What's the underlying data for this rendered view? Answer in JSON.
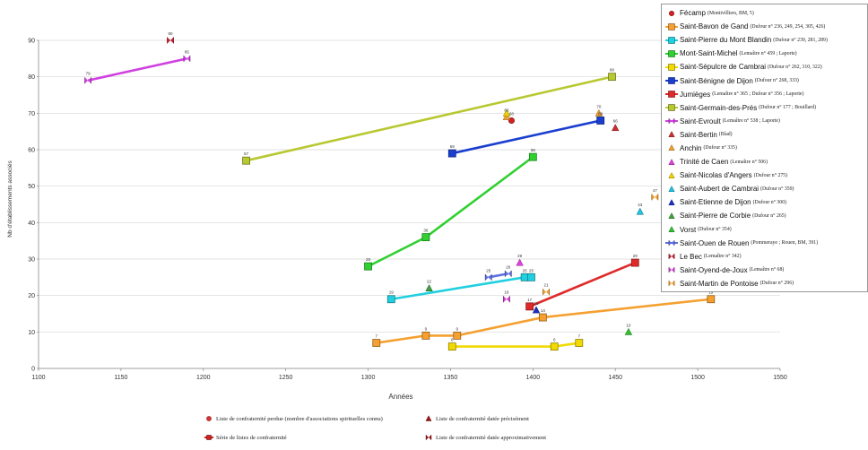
{
  "chart_data": {
    "type": "line",
    "xlabel": "Années",
    "ylabel": "Nb d'établissements associés",
    "xlim": [
      1100,
      1550
    ],
    "ylim": [
      0,
      90
    ],
    "xticks": [
      "1100",
      "1150",
      "1200",
      "1250",
      "1300",
      "1350",
      "1400",
      "1450",
      "1500",
      "1550"
    ],
    "yticks": [
      "0",
      "10",
      "20",
      "30",
      "40",
      "50",
      "60",
      "70",
      "80",
      "90"
    ],
    "grid": "horizontal",
    "legend_position": "right",
    "series": [
      {
        "name": "Fécamp",
        "source": "(Montivilliers, BM, 5)",
        "color": "#d32020",
        "marker": "circle",
        "connect": false,
        "points": [
          {
            "x": 1387,
            "y": 68,
            "label": "68"
          }
        ]
      },
      {
        "name": "Saint-Bavon de Gand",
        "source": "(Dufour n° 236, 249, 254, 305, 426)",
        "color": "#f5a030",
        "marker": "square",
        "connect": true,
        "points": [
          {
            "x": 1305,
            "y": 7,
            "label": "7"
          },
          {
            "x": 1335,
            "y": 9,
            "label": "9"
          },
          {
            "x": 1354,
            "y": 9,
            "label": "9"
          },
          {
            "x": 1406,
            "y": 14,
            "label": "14"
          },
          {
            "x": 1508,
            "y": 19,
            "label": "19"
          }
        ]
      },
      {
        "name": "Saint-Pierre du Mont Blandin",
        "source": "(Dufour n° 239, 281, 289)",
        "color": "#20d0e0",
        "marker": "square",
        "connect": true,
        "points": [
          {
            "x": 1314,
            "y": 19,
            "label": "19"
          },
          {
            "x": 1395,
            "y": 25,
            "label": "25"
          },
          {
            "x": 1399,
            "y": 25,
            "label": "25"
          }
        ]
      },
      {
        "name": "Mont-Saint-Michel",
        "source": "(Lemaître n° 459 ; Laporte)",
        "color": "#30d030",
        "marker": "square",
        "connect": true,
        "points": [
          {
            "x": 1300,
            "y": 28,
            "label": "28"
          },
          {
            "x": 1335,
            "y": 36,
            "label": "36"
          },
          {
            "x": 1400,
            "y": 58,
            "label": "58"
          }
        ]
      },
      {
        "name": "Saint-Sépulcre de Cambrai",
        "source": "(Dufour n° 262, 310, 322)",
        "color": "#f2da00",
        "marker": "square",
        "connect": true,
        "points": [
          {
            "x": 1351,
            "y": 6,
            "label": "6"
          },
          {
            "x": 1413,
            "y": 6,
            "label": "6"
          },
          {
            "x": 1428,
            "y": 7,
            "label": "7"
          }
        ]
      },
      {
        "name": "Saint-Bénigne de Dijon",
        "source": "(Dufour n° 268, 333)",
        "color": "#1a3fd0",
        "marker": "square",
        "connect": true,
        "points": [
          {
            "x": 1351,
            "y": 59,
            "label": "59"
          },
          {
            "x": 1441,
            "y": 68,
            "label": "68"
          }
        ]
      },
      {
        "name": "Jumièges",
        "source": "(Lemaître n° 365 ; Dufour n° 356 ; Laporte)",
        "color": "#e02a2a",
        "marker": "square",
        "connect": true,
        "points": [
          {
            "x": 1398,
            "y": 17,
            "label": "17"
          },
          {
            "x": 1462,
            "y": 29,
            "label": "29"
          }
        ]
      },
      {
        "name": "Saint-Germain-des-Prés",
        "source": "(Dufour n° 177 ; Bouillard)",
        "color": "#b8c830",
        "marker": "square",
        "connect": true,
        "points": [
          {
            "x": 1226,
            "y": 57,
            "label": "57"
          },
          {
            "x": 1448,
            "y": 80,
            "label": "80"
          }
        ]
      },
      {
        "name": "Saint-Evroult",
        "source": "(Lemaître n° 538 ; Laporte)",
        "color": "#d040e0",
        "marker": "bowtie",
        "connect": true,
        "points": [
          {
            "x": 1130,
            "y": 79,
            "label": "79"
          },
          {
            "x": 1190,
            "y": 85,
            "label": "85"
          }
        ]
      },
      {
        "name": "Saint-Bertin",
        "source": "(Blad)",
        "color": "#c83030",
        "marker": "triangle",
        "connect": false,
        "points": [
          {
            "x": 1450,
            "y": 66,
            "label": "66"
          }
        ]
      },
      {
        "name": "Anchin",
        "source": "(Dufour n° 335)",
        "color": "#f0a030",
        "marker": "triangle",
        "connect": false,
        "points": [
          {
            "x": 1384,
            "y": 69,
            "label": "69"
          },
          {
            "x": 1440,
            "y": 70,
            "label": "70"
          }
        ]
      },
      {
        "name": "Trinité de Caen",
        "source": "(Lemaître n° 506)",
        "color": "#e040e0",
        "marker": "triangle",
        "connect": false,
        "points": [
          {
            "x": 1392,
            "y": 29,
            "label": "29"
          }
        ]
      },
      {
        "name": "Saint-Nicolas d'Angers",
        "source": "(Dufour n° 275)",
        "color": "#f0d000",
        "marker": "triangle",
        "connect": false,
        "points": [
          {
            "x": 1384,
            "y": 70,
            "label": ""
          }
        ]
      },
      {
        "name": "Saint-Aubert de Cambrai",
        "source": "(Dufour n° 359)",
        "color": "#20c0e0",
        "marker": "triangle",
        "connect": false,
        "points": [
          {
            "x": 1465,
            "y": 43,
            "label": "43"
          }
        ]
      },
      {
        "name": "Saint-Etienne de Dijon",
        "source": "(Dufour n° 300)",
        "color": "#1a30c0",
        "marker": "triangle",
        "connect": false,
        "points": [
          {
            "x": 1402,
            "y": 16,
            "label": "16"
          }
        ]
      },
      {
        "name": "Saint-Pierre de Corbie",
        "source": "(Dufour n° 265)",
        "color": "#40a040",
        "marker": "triangle",
        "connect": false,
        "points": [
          {
            "x": 1337,
            "y": 22,
            "label": "22"
          }
        ]
      },
      {
        "name": "Vorst",
        "source": "(Dufour n° 354)",
        "color": "#30c030",
        "marker": "triangle",
        "connect": false,
        "points": [
          {
            "x": 1458,
            "y": 10,
            "label": "10"
          }
        ]
      },
      {
        "name": "Saint-Ouen de Rouen",
        "source": "(Pommeraye ; Rouen, BM, 391)",
        "color": "#6070e0",
        "marker": "bowtie",
        "connect": true,
        "points": [
          {
            "x": 1373,
            "y": 25,
            "label": "25"
          },
          {
            "x": 1385,
            "y": 26,
            "label": "26"
          }
        ]
      },
      {
        "name": "Le Bec",
        "source": "(Lemaître n° 342)",
        "color": "#c02030",
        "marker": "bowtie",
        "connect": false,
        "points": [
          {
            "x": 1180,
            "y": 90,
            "label": "90"
          }
        ]
      },
      {
        "name": "Saint-Oyend-de-Joux",
        "source": "(Lemaître n° 68)",
        "color": "#d040d0",
        "marker": "bowtie",
        "connect": false,
        "points": [
          {
            "x": 1384,
            "y": 19,
            "label": "19"
          }
        ]
      },
      {
        "name": "Saint-Martin de Pontoise",
        "source": "(Dufour n° 296)",
        "color": "#f0a030",
        "marker": "bowtie",
        "connect": false,
        "points": [
          {
            "x": 1408,
            "y": 21,
            "label": "21"
          },
          {
            "x": 1474,
            "y": 47,
            "label": "47"
          }
        ]
      },
      {
        "name": "Saint-Amand",
        "source": "(Platelle)",
        "color": "#b06010",
        "marker": "bowtie",
        "connect": false,
        "points": []
      }
    ]
  },
  "bottom_legend": [
    {
      "text": "Liste de confraternité perdue (nombre d'associations spirituelles connu)",
      "marker": "circle",
      "color": "#e03030"
    },
    {
      "text": "Liste de confraternité datée précisément",
      "marker": "triangle",
      "color": "#a01818"
    },
    {
      "text": "Série de listes de confraternité",
      "marker": "line-square",
      "color": "#d02020"
    },
    {
      "text": "Liste de confraternité datée approximativement",
      "marker": "bowtie",
      "color": "#a01818"
    }
  ]
}
